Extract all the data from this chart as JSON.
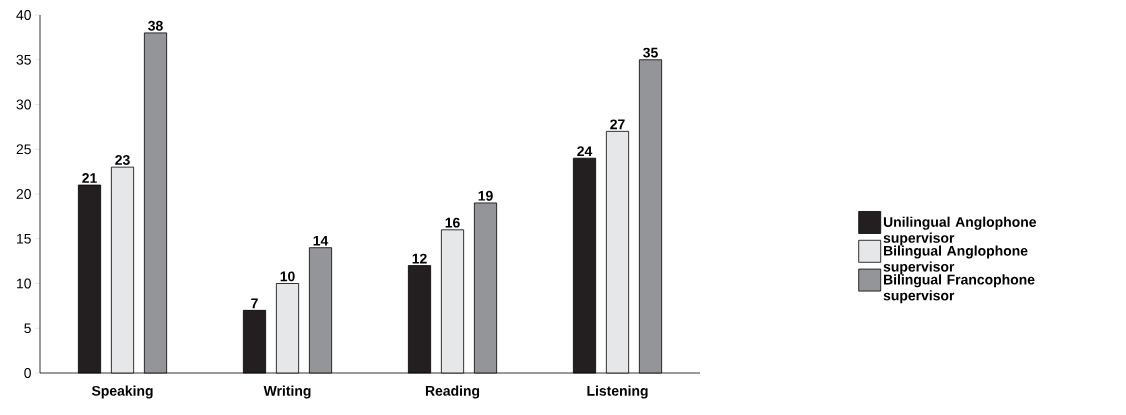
{
  "chart_data": {
    "type": "bar",
    "categories": [
      "Speaking",
      "Writing",
      "Reading",
      "Listening"
    ],
    "series": [
      {
        "name": "Unilingual Anglophone supervisor",
        "color": "#231f20",
        "values": [
          21,
          7,
          12,
          24
        ]
      },
      {
        "name": "Bilingual Anglophone supervisor",
        "color": "#e6e7e8",
        "values": [
          23,
          10,
          16,
          27
        ]
      },
      {
        "name": "Bilingual Francophone supervisor",
        "color": "#939598",
        "values": [
          38,
          14,
          19,
          35
        ]
      }
    ],
    "ylim": [
      0,
      40
    ],
    "yticks": [
      0,
      5,
      10,
      15,
      20,
      25,
      30,
      35,
      40
    ],
    "data_labels": true,
    "grid": false,
    "legend": "right"
  }
}
